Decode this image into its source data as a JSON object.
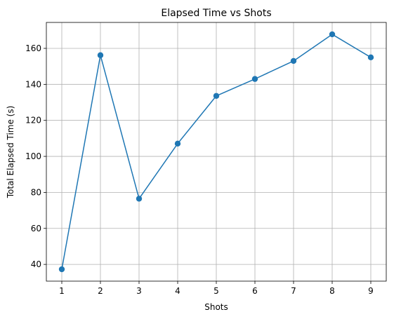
{
  "chart_data": {
    "type": "line",
    "title": "Elapsed Time vs Shots",
    "xlabel": "Shots",
    "ylabel": "Total Elapsed Time (s)",
    "x": [
      1,
      2,
      3,
      4,
      5,
      6,
      7,
      8,
      9
    ],
    "series": [
      {
        "values": [
          37.3,
          156.2,
          76.5,
          107.1,
          133.6,
          143.0,
          153.0,
          167.8,
          155.0
        ],
        "color": "#1f77b4",
        "marker": "circle"
      }
    ],
    "xlim": [
      0.6,
      9.4
    ],
    "ylim": [
      30.7,
      174.4
    ],
    "xticks": [
      1,
      2,
      3,
      4,
      5,
      6,
      7,
      8,
      9
    ],
    "yticks": [
      40,
      60,
      80,
      100,
      120,
      140,
      160
    ],
    "grid": true,
    "legend": "none"
  }
}
